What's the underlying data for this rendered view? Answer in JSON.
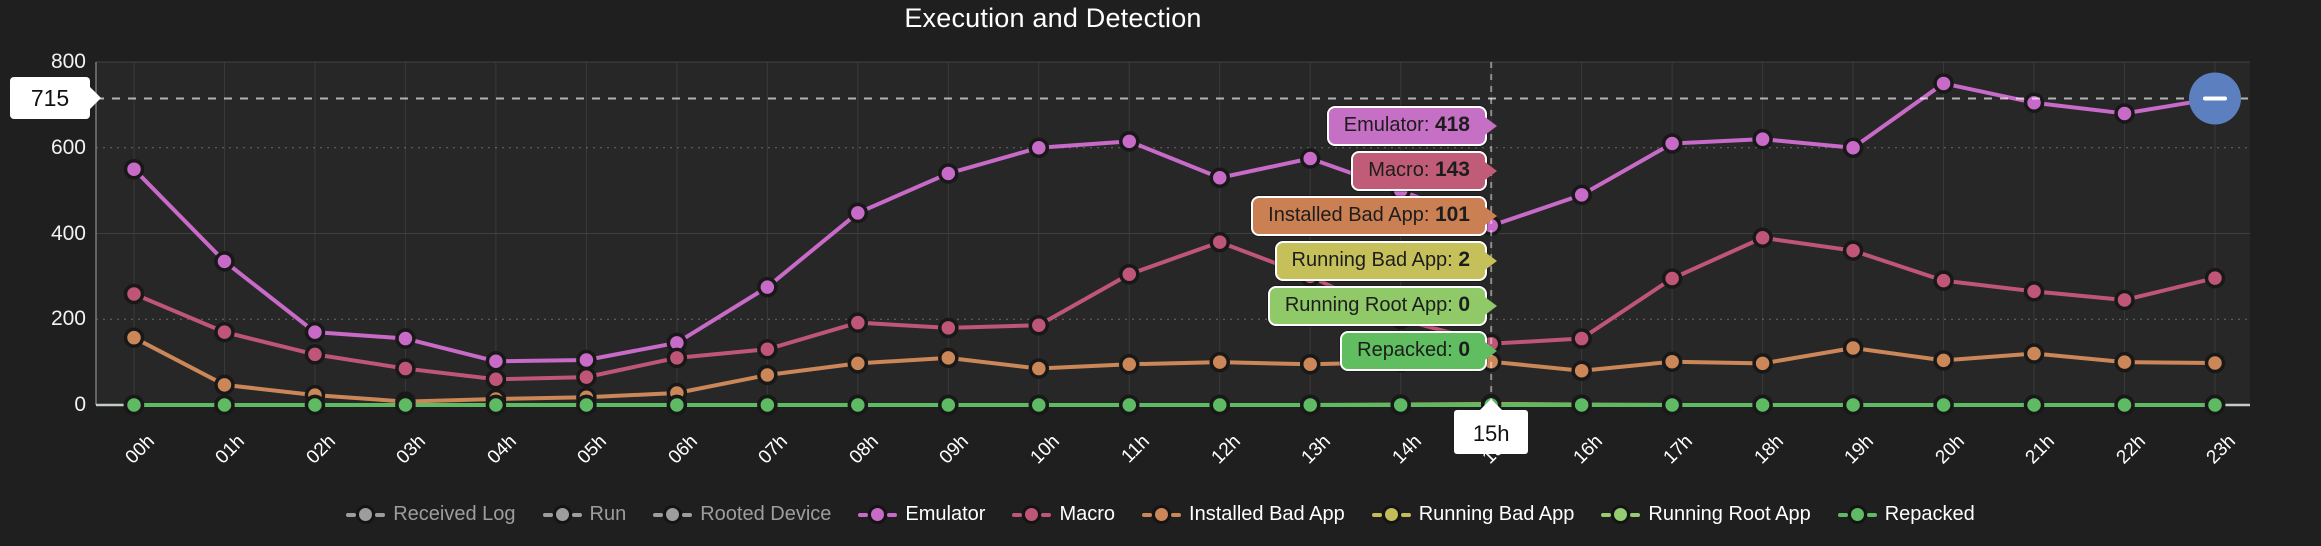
{
  "chart_data": {
    "type": "line",
    "title": "Execution and Detection",
    "x": [
      "00h",
      "01h",
      "02h",
      "03h",
      "04h",
      "05h",
      "06h",
      "07h",
      "08h",
      "09h",
      "10h",
      "11h",
      "12h",
      "13h",
      "14h",
      "15h",
      "16h",
      "17h",
      "18h",
      "19h",
      "20h",
      "21h",
      "22h",
      "23h"
    ],
    "xlabel": "",
    "ylabel": "",
    "ylim": [
      0,
      800
    ],
    "yticks": [
      0,
      200,
      400,
      600,
      800
    ],
    "grid": true,
    "legend_position": "bottom",
    "series": [
      {
        "name": "Received Log",
        "color": "#9d9d9d",
        "disabled": true,
        "values": null
      },
      {
        "name": "Run",
        "color": "#9d9d9d",
        "disabled": true,
        "values": null
      },
      {
        "name": "Rooted Device",
        "color": "#9d9d9d",
        "disabled": true,
        "values": null
      },
      {
        "name": "Emulator",
        "color": "#c86ac8",
        "disabled": false,
        "values": [
          550,
          335,
          170,
          155,
          102,
          105,
          145,
          275,
          448,
          540,
          600,
          615,
          530,
          575,
          500,
          418,
          490,
          610,
          620,
          600,
          750,
          705,
          680,
          715
        ]
      },
      {
        "name": "Macro",
        "color": "#bf5677",
        "disabled": false,
        "values": [
          259,
          170,
          118,
          85,
          60,
          65,
          110,
          130,
          192,
          180,
          186,
          305,
          380,
          300,
          200,
          143,
          155,
          295,
          390,
          360,
          290,
          265,
          245,
          296
        ]
      },
      {
        "name": "Installed Bad App",
        "color": "#cb8758",
        "disabled": false,
        "values": [
          157,
          47,
          23,
          8,
          14,
          18,
          28,
          70,
          97,
          110,
          85,
          95,
          100,
          95,
          100,
          101,
          80,
          101,
          97,
          133,
          104,
          120,
          100,
          98
        ]
      },
      {
        "name": "Running Bad App",
        "color": "#c2bc5a",
        "disabled": false,
        "values": [
          0,
          0,
          0,
          0,
          0,
          0,
          0,
          0,
          0,
          0,
          0,
          0,
          0,
          0,
          1,
          2,
          1,
          0,
          0,
          0,
          0,
          0,
          0,
          0
        ]
      },
      {
        "name": "Running Root App",
        "color": "#94cc70",
        "disabled": false,
        "values": [
          0,
          0,
          0,
          0,
          0,
          0,
          0,
          0,
          0,
          0,
          0,
          0,
          0,
          0,
          0,
          0,
          0,
          0,
          0,
          0,
          0,
          0,
          0,
          0
        ]
      },
      {
        "name": "Repacked",
        "color": "#5fbb63",
        "disabled": false,
        "values": [
          0,
          0,
          0,
          0,
          0,
          0,
          0,
          0,
          0,
          0,
          0,
          0,
          0,
          0,
          0,
          0,
          0,
          0,
          0,
          0,
          0,
          0,
          0,
          0
        ]
      }
    ],
    "annotations": {
      "y_marker": {
        "label": "715",
        "value": 715
      },
      "x_marker": {
        "label": "15h",
        "index": 15
      },
      "end_control": {
        "glyph": "minus",
        "color": "#5c80bf",
        "series": "Emulator",
        "index": 23
      }
    }
  },
  "tooltip": {
    "x_label": "15h",
    "entries": [
      {
        "label": "Emulator",
        "value": "418",
        "color": "#c56fc5"
      },
      {
        "label": "Macro",
        "value": "143",
        "color": "#c05c77"
      },
      {
        "label": "Installed Bad App",
        "value": "101",
        "color": "#cb8054"
      },
      {
        "label": "Running Bad App",
        "value": "2",
        "color": "#c6c05b"
      },
      {
        "label": "Running Root App",
        "value": "0",
        "color": "#8fc968"
      },
      {
        "label": "Repacked",
        "value": "0",
        "color": "#60bd60"
      }
    ]
  },
  "colors": {
    "background": "#1f1f1f",
    "plot_background": "#272727",
    "grid": "#3a3a3a",
    "axis_text": "#ffffff",
    "disabled_legend": "#9d9d9d",
    "marker_line": "#ffffff",
    "control_blue": "#5c80bf"
  }
}
